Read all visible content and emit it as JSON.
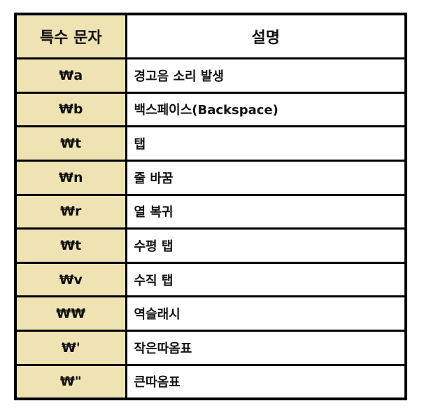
{
  "table": {
    "headers": {
      "char": "특수 문자",
      "desc": "설명"
    },
    "rows": [
      {
        "char": "₩a",
        "desc": "경고음 소리 발생"
      },
      {
        "char": "₩b",
        "desc": "백스페이스(Backspace)"
      },
      {
        "char": "₩t",
        "desc": "탭"
      },
      {
        "char": "₩n",
        "desc": "줄 바꿈"
      },
      {
        "char": "₩r",
        "desc": "열 복귀"
      },
      {
        "char": "₩t",
        "desc": "수평 탭"
      },
      {
        "char": "₩v",
        "desc": "수직 탭"
      },
      {
        "char": "₩₩",
        "desc": "역슬래시"
      },
      {
        "char": "₩'",
        "desc": "작은따옴표"
      },
      {
        "char": "₩\"",
        "desc": "큰따옴표"
      }
    ]
  },
  "colors": {
    "header_fill": "#efe3b4",
    "border": "#000000"
  }
}
